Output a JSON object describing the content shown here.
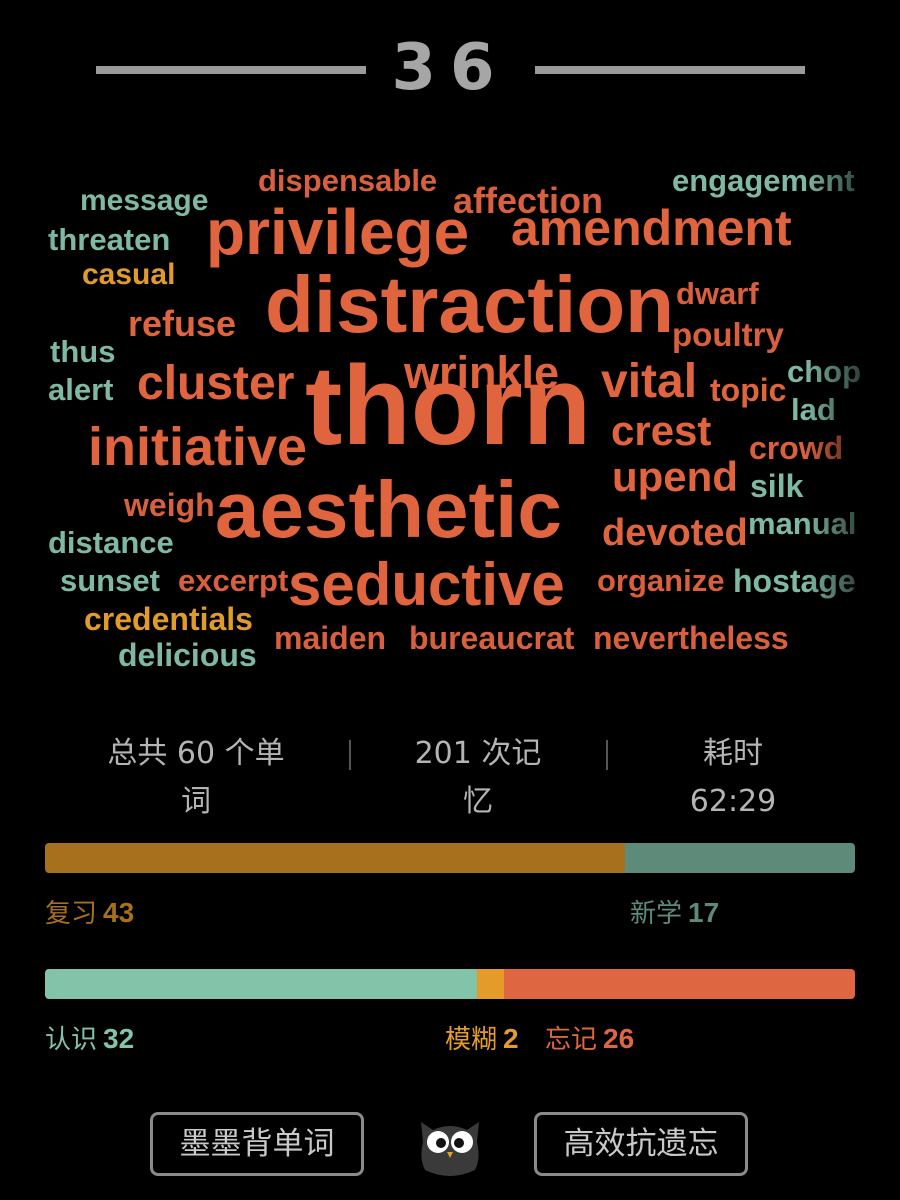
{
  "header": {
    "day_number": "36"
  },
  "word_cloud": [
    {
      "text": "message",
      "color": "#7fb9a3"
    },
    {
      "text": "dispensable",
      "color": "#d9603e"
    },
    {
      "text": "affection",
      "color": "#d9603e"
    },
    {
      "text": "engagement",
      "color": "#7fb9a3"
    },
    {
      "text": "threaten",
      "color": "#7fb9a3"
    },
    {
      "text": "privilege",
      "color": "#e0653f"
    },
    {
      "text": "amendment",
      "color": "#e0653f"
    },
    {
      "text": "casual",
      "color": "#e09b2b"
    },
    {
      "text": "dwarf",
      "color": "#d9603e"
    },
    {
      "text": "refuse",
      "color": "#e0653f"
    },
    {
      "text": "distraction",
      "color": "#e0653f"
    },
    {
      "text": "poultry",
      "color": "#d9603e"
    },
    {
      "text": "thus",
      "color": "#7fb9a3"
    },
    {
      "text": "cluster",
      "color": "#e0653f"
    },
    {
      "text": "wrinkle",
      "color": "#e0653f"
    },
    {
      "text": "vital",
      "color": "#e0653f"
    },
    {
      "text": "chop",
      "color": "#7fb9a3"
    },
    {
      "text": "alert",
      "color": "#7fb9a3"
    },
    {
      "text": "topic",
      "color": "#e0653f"
    },
    {
      "text": "thorn",
      "color": "#e0653f"
    },
    {
      "text": "lad",
      "color": "#7fb9a3"
    },
    {
      "text": "initiative",
      "color": "#e0653f"
    },
    {
      "text": "crest",
      "color": "#e0653f"
    },
    {
      "text": "crowd",
      "color": "#d9603e"
    },
    {
      "text": "upend",
      "color": "#e0653f"
    },
    {
      "text": "silk",
      "color": "#7fb9a3"
    },
    {
      "text": "weigh",
      "color": "#d9603e"
    },
    {
      "text": "aesthetic",
      "color": "#e0653f"
    },
    {
      "text": "devoted",
      "color": "#e0653f"
    },
    {
      "text": "manual",
      "color": "#7fb9a3"
    },
    {
      "text": "distance",
      "color": "#7fb9a3"
    },
    {
      "text": "sunset",
      "color": "#7fb9a3"
    },
    {
      "text": "excerpt",
      "color": "#d9603e"
    },
    {
      "text": "seductive",
      "color": "#e0653f"
    },
    {
      "text": "organize",
      "color": "#d9603e"
    },
    {
      "text": "hostage",
      "color": "#7fb9a3"
    },
    {
      "text": "credentials",
      "color": "#e09b2b"
    },
    {
      "text": "maiden",
      "color": "#d9603e"
    },
    {
      "text": "bureaucrat",
      "color": "#d9603e"
    },
    {
      "text": "nevertheless",
      "color": "#d9603e"
    },
    {
      "text": "delicious",
      "color": "#7fb9a3"
    }
  ],
  "stats": {
    "total_words_line1": "总共 60 个单",
    "total_words_line2": "词",
    "memory_count_line1": "201 次记",
    "memory_count_line2": "忆",
    "time_label": "耗时",
    "time_value": "62:29"
  },
  "progress_review_new": {
    "review_label": "复习",
    "review_count": "43",
    "new_label": "新学",
    "new_count": "17",
    "review_fraction": 43,
    "new_fraction": 17,
    "review_color": "#a6701c",
    "new_color": "#5e8a7a"
  },
  "progress_recall": {
    "know_label": "认识",
    "know_count": "32",
    "fuzzy_label": "模糊",
    "fuzzy_count": "2",
    "forget_label": "忘记",
    "forget_count": "26",
    "know_fraction": 32,
    "fuzzy_fraction": 2,
    "forget_fraction": 26,
    "know_color": "#82c3aa",
    "fuzzy_color": "#e49b2a",
    "forget_color": "#de6641"
  },
  "footer": {
    "left_button": "墨墨背单词",
    "right_button": "高效抗遗忘",
    "logo_icon": "owl-icon"
  }
}
